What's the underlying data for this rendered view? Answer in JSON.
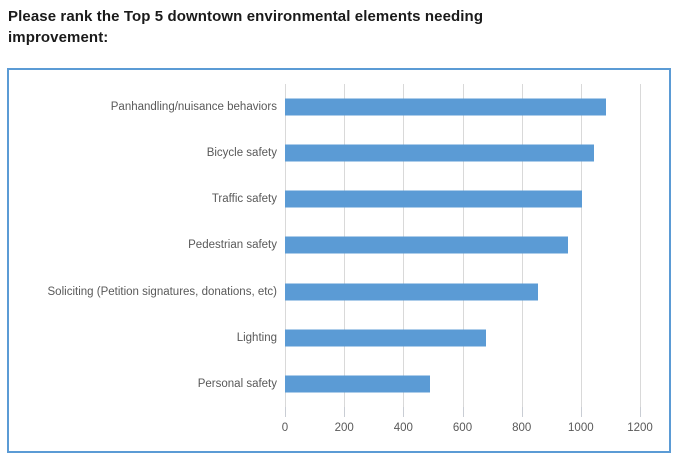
{
  "title": "Please rank the Top 5 downtown environmental elements needing improvement:",
  "colors": {
    "bar": "#5B9BD5",
    "frame_border": "#5B9BD5",
    "gridline": "#D9D9D9",
    "tick": "#C9CDD4",
    "axis_text": "#595959",
    "title_text": "#1a1a1a"
  },
  "chart_data": {
    "type": "bar",
    "orientation": "horizontal",
    "title": "Please rank the Top 5 downtown environmental elements needing improvement:",
    "categories": [
      "Panhandling/nuisance behaviors",
      "Bicycle safety",
      "Traffic safety",
      "Pedestrian safety",
      "Soliciting (Petition signatures, donations, etc)",
      "Lighting",
      "Personal safety"
    ],
    "values": [
      1085,
      1045,
      1005,
      955,
      855,
      680,
      490
    ],
    "xlabel": "",
    "ylabel": "",
    "xlim": [
      0,
      1200
    ],
    "x_ticks": [
      "0",
      "200",
      "400",
      "600",
      "800",
      "1000",
      "1200"
    ],
    "grid": true,
    "legend": false
  }
}
